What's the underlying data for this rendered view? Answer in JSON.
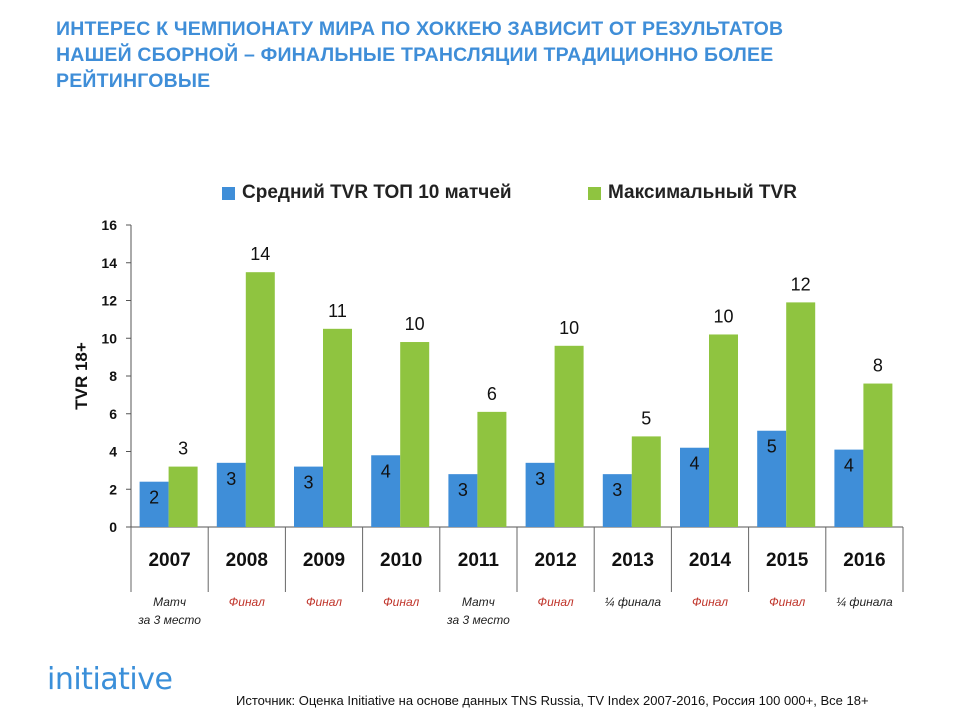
{
  "title_lines": [
    "ИНТЕРЕС К ЧЕМПИОНАТУ МИРА ПО ХОККЕЮ ЗАВИСИТ ОТ РЕЗУЛЬТАТОВ",
    "НАШЕЙ СБОРНОЙ – ФИНАЛЬНЫЕ ТРАНСЛЯЦИИ ТРАДИЦИОННО БОЛЕЕ",
    "РЕЙТИНГОВЫЕ"
  ],
  "brand": "initiative",
  "source": "Источник: Оценка Initiative на основе данных TNS Russia, TV Index 2007-2016, Россия 100 000+, Все 18+",
  "colors": {
    "title": "#3f8ed8",
    "series_avg": "#3f8ed8",
    "series_max": "#8fc440",
    "final_note": "#c0342a"
  },
  "chart_data": {
    "type": "bar",
    "categories": [
      "2007",
      "2008",
      "2009",
      "2010",
      "2011",
      "2012",
      "2013",
      "2014",
      "2015",
      "2016"
    ],
    "series": [
      {
        "name": "Средний TVR ТОП 10 матчей",
        "color": "#3f8ed8",
        "values": [
          2.4,
          3.4,
          3.2,
          3.8,
          2.8,
          3.4,
          2.8,
          4.2,
          5.1,
          4.1
        ],
        "labels": [
          "2",
          "3",
          "3",
          "4",
          "3",
          "3",
          "3",
          "4",
          "5",
          "4"
        ]
      },
      {
        "name": "Максимальный TVR",
        "color": "#8fc440",
        "values": [
          3.2,
          13.5,
          10.5,
          9.8,
          6.1,
          9.6,
          4.8,
          10.2,
          11.9,
          7.6
        ],
        "labels": [
          "3",
          "14",
          "11",
          "10",
          "6",
          "10",
          "5",
          "10",
          "12",
          "8"
        ]
      }
    ],
    "ylabel": "TVR 18+",
    "xlabel": "",
    "ylim": [
      0,
      16
    ],
    "yticks": [
      "0",
      "2",
      "4",
      "6",
      "8",
      "10",
      "12",
      "14",
      "16"
    ],
    "legend_position": "top",
    "grid": false,
    "annotations": [
      {
        "category": "2007",
        "text": [
          "Матч",
          "за 3 место"
        ],
        "final": false
      },
      {
        "category": "2008",
        "text": [
          "Финал"
        ],
        "final": true
      },
      {
        "category": "2009",
        "text": [
          "Финал"
        ],
        "final": true
      },
      {
        "category": "2010",
        "text": [
          "Финал"
        ],
        "final": true
      },
      {
        "category": "2011",
        "text": [
          "Матч",
          "за 3 место"
        ],
        "final": false
      },
      {
        "category": "2012",
        "text": [
          "Финал"
        ],
        "final": true
      },
      {
        "category": "2013",
        "text": [
          "¼ финала"
        ],
        "final": false
      },
      {
        "category": "2014",
        "text": [
          "Финал"
        ],
        "final": true
      },
      {
        "category": "2015",
        "text": [
          "Финал"
        ],
        "final": true
      },
      {
        "category": "2016",
        "text": [
          "¼ финала"
        ],
        "final": false
      }
    ]
  }
}
